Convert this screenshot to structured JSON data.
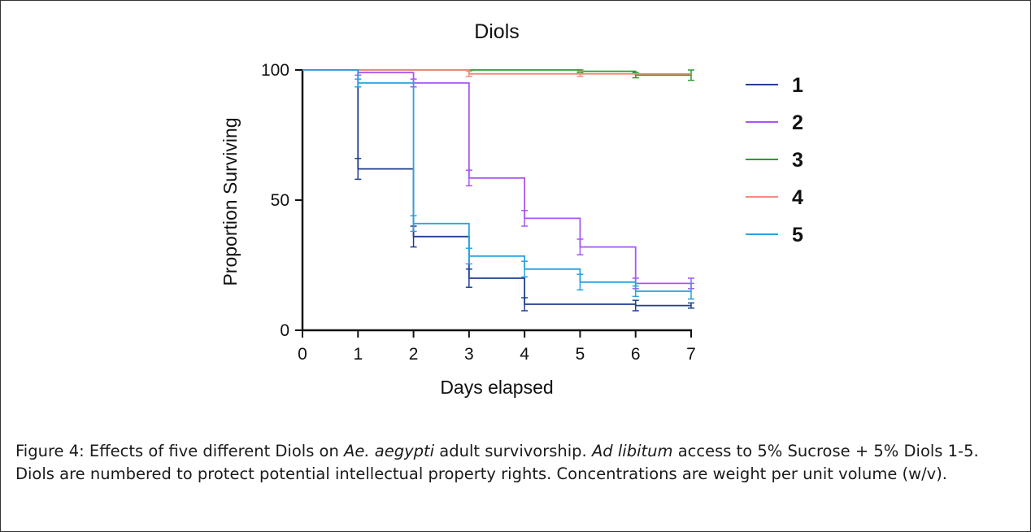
{
  "chart_data": {
    "type": "line",
    "title": "Diols",
    "xlabel": "Days elapsed",
    "ylabel": "Proportion Surviving",
    "xlim": [
      0,
      7
    ],
    "ylim": [
      0,
      100
    ],
    "x_ticks": [
      "0",
      "1",
      "2",
      "3",
      "4",
      "5",
      "6",
      "7"
    ],
    "y_ticks": [
      "0",
      "50",
      "100"
    ],
    "step": true,
    "legend_position": "right",
    "series": [
      {
        "name": "1",
        "color": "#1f3f8f",
        "x": [
          0,
          1,
          2,
          3,
          4,
          5,
          6,
          7
        ],
        "y": [
          100,
          62,
          36,
          20,
          10,
          10,
          9.5,
          9.5
        ],
        "err": [
          0,
          4,
          4,
          3.5,
          2.5,
          0,
          2,
          1
        ]
      },
      {
        "name": "2",
        "color": "#a855f7",
        "x": [
          0,
          1,
          2,
          3,
          4,
          5,
          6,
          7
        ],
        "y": [
          100,
          99,
          95,
          58.5,
          43,
          32,
          18,
          18
        ],
        "err": [
          0,
          1,
          1.5,
          3,
          3,
          3,
          2,
          2
        ]
      },
      {
        "name": "3",
        "color": "#2e9a2e",
        "x": [
          0,
          1,
          2,
          3,
          4,
          5,
          6,
          7
        ],
        "y": [
          100,
          100,
          100,
          100,
          100,
          99.5,
          98,
          98
        ],
        "err": [
          0,
          0,
          0,
          0,
          0,
          0.5,
          1,
          2
        ]
      },
      {
        "name": "4",
        "color": "#f08a7e",
        "x": [
          0,
          1,
          2,
          3,
          4,
          5,
          6,
          7
        ],
        "y": [
          100,
          100,
          100,
          98.5,
          98.5,
          98.5,
          98.5,
          98.5
        ],
        "err": [
          0,
          0,
          0,
          1,
          0,
          1,
          0,
          0
        ]
      },
      {
        "name": "5",
        "color": "#29a3e0",
        "x": [
          0,
          1,
          2,
          3,
          4,
          5,
          6,
          7
        ],
        "y": [
          100,
          95,
          41,
          28.5,
          23.5,
          18.5,
          15,
          15
        ],
        "err": [
          0,
          1.5,
          3,
          3,
          3,
          3,
          2,
          3
        ]
      }
    ]
  },
  "caption": {
    "prefix": "Figure 4: Effects of five different Diols on ",
    "species": "Ae. aegypti",
    "middle": " adult survivorship. ",
    "ad_libitum": "Ad libitum",
    "rest": " access to 5% Sucrose + 5% Diols 1-5. Diols are numbered to protect potential intellectual property rights. Concentrations are weight per unit volume (w/v)."
  }
}
